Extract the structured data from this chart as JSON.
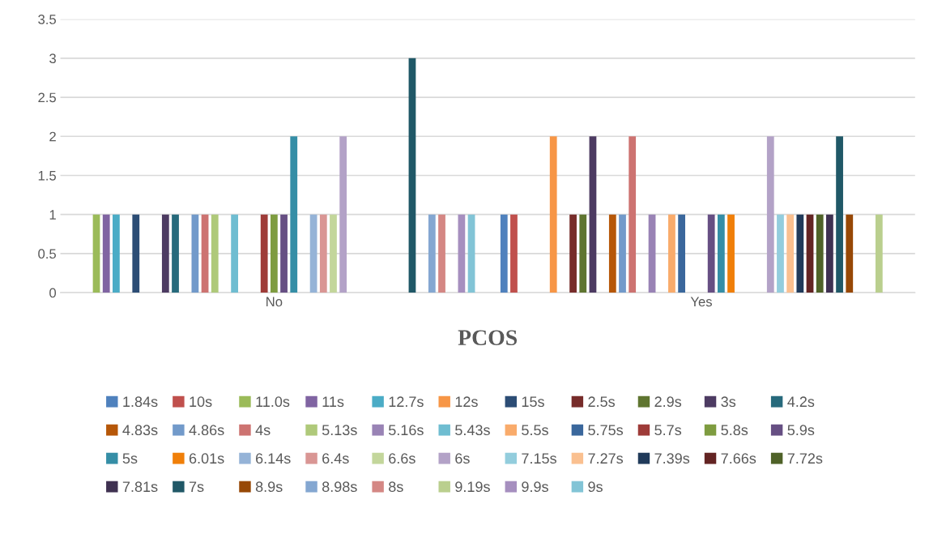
{
  "chart_data": {
    "type": "bar",
    "xlabel": "PCOS",
    "categories": [
      "No",
      "Yes"
    ],
    "ylim": [
      0,
      3.5
    ],
    "yticks": [
      0,
      0.5,
      1,
      1.5,
      2,
      2.5,
      3,
      3.5
    ],
    "grid": "y",
    "legend": "bottom",
    "series": [
      {
        "name": "1.84s",
        "color": "#4f81bd",
        "values": [
          0,
          1
        ]
      },
      {
        "name": "10s",
        "color": "#c0504d",
        "values": [
          0,
          1
        ]
      },
      {
        "name": "11.0s",
        "color": "#9bbb59",
        "values": [
          1,
          0
        ]
      },
      {
        "name": "11s",
        "color": "#8064a2",
        "values": [
          1,
          0
        ]
      },
      {
        "name": "12.7s",
        "color": "#4bacc6",
        "values": [
          1,
          0
        ]
      },
      {
        "name": "12s",
        "color": "#f79646",
        "values": [
          0,
          2
        ]
      },
      {
        "name": "15s",
        "color": "#2c4d75",
        "values": [
          1,
          0
        ]
      },
      {
        "name": "2.5s",
        "color": "#772c2a",
        "values": [
          0,
          1
        ]
      },
      {
        "name": "2.9s",
        "color": "#5f7530",
        "values": [
          0,
          1
        ]
      },
      {
        "name": "3s",
        "color": "#4d3b62",
        "values": [
          1,
          2
        ]
      },
      {
        "name": "4.2s",
        "color": "#276a7c",
        "values": [
          1,
          0
        ]
      },
      {
        "name": "4.83s",
        "color": "#b65708",
        "values": [
          0,
          1
        ]
      },
      {
        "name": "4.86s",
        "color": "#729aca",
        "values": [
          1,
          1
        ]
      },
      {
        "name": "4s",
        "color": "#cd7371",
        "values": [
          1,
          2
        ]
      },
      {
        "name": "5.13s",
        "color": "#afc97a",
        "values": [
          1,
          0
        ]
      },
      {
        "name": "5.16s",
        "color": "#9983b5",
        "values": [
          0,
          1
        ]
      },
      {
        "name": "5.43s",
        "color": "#6fbdd1",
        "values": [
          1,
          0
        ]
      },
      {
        "name": "5.5s",
        "color": "#f9ab6b",
        "values": [
          0,
          1
        ]
      },
      {
        "name": "5.75s",
        "color": "#3a679c",
        "values": [
          0,
          1
        ]
      },
      {
        "name": "5.7s",
        "color": "#9e3b38",
        "values": [
          1,
          0
        ]
      },
      {
        "name": "5.8s",
        "color": "#7e9c40",
        "values": [
          1,
          0
        ]
      },
      {
        "name": "5.9s",
        "color": "#664f83",
        "values": [
          1,
          1
        ]
      },
      {
        "name": "5s",
        "color": "#358ea6",
        "values": [
          2,
          1
        ]
      },
      {
        "name": "6.01s",
        "color": "#f07f09",
        "values": [
          0,
          1
        ]
      },
      {
        "name": "6.14s",
        "color": "#95b3d7",
        "values": [
          1,
          0
        ]
      },
      {
        "name": "6.4s",
        "color": "#d99694",
        "values": [
          1,
          0
        ]
      },
      {
        "name": "6.6s",
        "color": "#c3d69b",
        "values": [
          1,
          0
        ]
      },
      {
        "name": "6s",
        "color": "#b3a2c7",
        "values": [
          2,
          2
        ]
      },
      {
        "name": "7.15s",
        "color": "#93cddd",
        "values": [
          0,
          1
        ]
      },
      {
        "name": "7.27s",
        "color": "#fac090",
        "values": [
          0,
          1
        ]
      },
      {
        "name": "7.39s",
        "color": "#203a5a",
        "values": [
          0,
          1
        ]
      },
      {
        "name": "7.66s",
        "color": "#632423",
        "values": [
          0,
          1
        ]
      },
      {
        "name": "7.72s",
        "color": "#4f6228",
        "values": [
          0,
          1
        ]
      },
      {
        "name": "7.81s",
        "color": "#3f3151",
        "values": [
          0,
          1
        ]
      },
      {
        "name": "7s",
        "color": "#205867",
        "values": [
          3,
          2
        ]
      },
      {
        "name": "8.9s",
        "color": "#974806",
        "values": [
          0,
          1
        ]
      },
      {
        "name": "8.98s",
        "color": "#84a7d1",
        "values": [
          1,
          0
        ]
      },
      {
        "name": "8s",
        "color": "#d48784",
        "values": [
          1,
          0
        ]
      },
      {
        "name": "9.19s",
        "color": "#bacf8e",
        "values": [
          0,
          1
        ]
      },
      {
        "name": "9.9s",
        "color": "#a68fbf",
        "values": [
          1,
          0
        ]
      },
      {
        "name": "9s",
        "color": "#82c4d6",
        "values": [
          1,
          0
        ]
      }
    ]
  }
}
